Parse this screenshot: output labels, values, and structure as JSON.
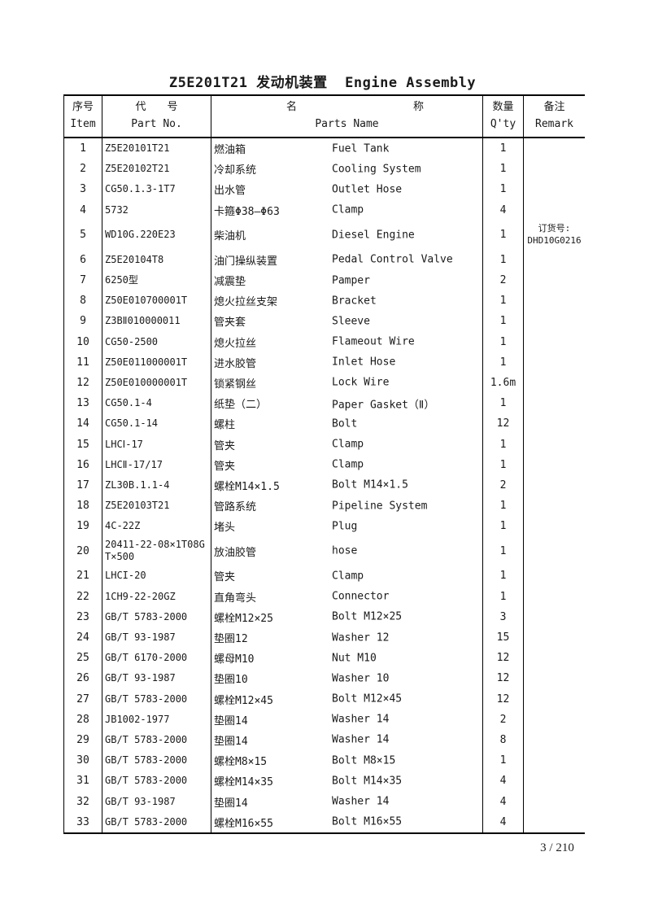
{
  "title": "Z5E201T21 发动机装置  Engine Assembly",
  "page_number": "3 / 210",
  "table": {
    "headers": {
      "item_cn": "序号",
      "item_en": "Item",
      "part_no_cn": "代　　号",
      "part_no_en": "Part No.",
      "name_cn_left": "名",
      "name_cn_right": "称",
      "name_en": "Parts Name",
      "qty_cn": "数量",
      "qty_en": "Q'ty",
      "remark_cn": "备注",
      "remark_en": "Remark"
    },
    "rows": [
      {
        "item": "1",
        "part_no": "Z5E20101T21",
        "name_cn": "燃油箱",
        "name_en": "Fuel Tank",
        "qty": "1",
        "remark": "",
        "tall": false
      },
      {
        "item": "2",
        "part_no": "Z5E20102T21",
        "name_cn": "冷却系统",
        "name_en": "Cooling System",
        "qty": "1",
        "remark": "",
        "tall": false
      },
      {
        "item": "3",
        "part_no": "CG50.1.3-1T7",
        "name_cn": "出水管",
        "name_en": "Outlet Hose",
        "qty": "1",
        "remark": "",
        "tall": false
      },
      {
        "item": "4",
        "part_no": "5732",
        "name_cn": "卡箍Φ38—Φ63",
        "name_en": "Clamp",
        "qty": "4",
        "remark": "",
        "tall": false
      },
      {
        "item": "5",
        "part_no": "WD10G.220E23",
        "name_cn": "柴油机",
        "name_en": "Diesel Engine",
        "qty": "1",
        "remark": "订货号:\nDHD10G0216",
        "tall": true
      },
      {
        "item": "6",
        "part_no": "Z5E20104T8",
        "name_cn": "油门操纵装置",
        "name_en": "Pedal Control Valve",
        "qty": "1",
        "remark": "",
        "tall": false
      },
      {
        "item": "7",
        "part_no": "6250型",
        "name_cn": "减震垫",
        "name_en": "Pamper",
        "qty": "2",
        "remark": "",
        "tall": false
      },
      {
        "item": "8",
        "part_no": "Z50E010700001T",
        "name_cn": "熄火拉丝支架",
        "name_en": "Bracket",
        "qty": "1",
        "remark": "",
        "tall": false
      },
      {
        "item": "9",
        "part_no": "Z3BⅡ010000011",
        "name_cn": "管夹套",
        "name_en": "Sleeve",
        "qty": "1",
        "remark": "",
        "tall": false
      },
      {
        "item": "10",
        "part_no": "CG50-2500",
        "name_cn": "熄火拉丝",
        "name_en": "Flameout Wire",
        "qty": "1",
        "remark": "",
        "tall": false
      },
      {
        "item": "11",
        "part_no": "Z50E011000001T",
        "name_cn": "进水胶管",
        "name_en": "Inlet Hose",
        "qty": "1",
        "remark": "",
        "tall": false
      },
      {
        "item": "12",
        "part_no": "Z50E010000001T",
        "name_cn": "锁紧钢丝",
        "name_en": "Lock Wire",
        "qty": "1.6m",
        "remark": "",
        "tall": false
      },
      {
        "item": "13",
        "part_no": "CG50.1-4",
        "name_cn": "纸垫（二）",
        "name_en": "Paper Gasket（Ⅱ）",
        "qty": "1",
        "remark": "",
        "tall": false
      },
      {
        "item": "14",
        "part_no": "CG50.1-14",
        "name_cn": "螺柱",
        "name_en": "Bolt",
        "qty": "12",
        "remark": "",
        "tall": false
      },
      {
        "item": "15",
        "part_no": "LHCⅠ-17",
        "name_cn": "管夹",
        "name_en": "Clamp",
        "qty": "1",
        "remark": "",
        "tall": false
      },
      {
        "item": "16",
        "part_no": "LHCⅡ-17/17",
        "name_cn": "管夹",
        "name_en": "Clamp",
        "qty": "1",
        "remark": "",
        "tall": false
      },
      {
        "item": "17",
        "part_no": "ZL30B.1.1-4",
        "name_cn": "螺栓M14×1.5",
        "name_en": "Bolt M14×1.5",
        "qty": "2",
        "remark": "",
        "tall": false
      },
      {
        "item": "18",
        "part_no": "Z5E20103T21",
        "name_cn": "管路系统",
        "name_en": "Pipeline System",
        "qty": "1",
        "remark": "",
        "tall": false
      },
      {
        "item": "19",
        "part_no": "4C-22Z",
        "name_cn": "堵头",
        "name_en": "Plug",
        "qty": "1",
        "remark": "",
        "tall": false
      },
      {
        "item": "20",
        "part_no": "20411-22-08×1T08GT×500",
        "name_cn": "放油胶管",
        "name_en": "hose",
        "qty": "1",
        "remark": "",
        "tall": true
      },
      {
        "item": "21",
        "part_no": "LHCI-20",
        "name_cn": "管夹",
        "name_en": "Clamp",
        "qty": "1",
        "remark": "",
        "tall": false
      },
      {
        "item": "22",
        "part_no": "1CH9-22-20GZ",
        "name_cn": "直角弯头",
        "name_en": "Connector",
        "qty": "1",
        "remark": "",
        "tall": false
      },
      {
        "item": "23",
        "part_no": "GB/T 5783-2000",
        "name_cn": "螺栓M12×25",
        "name_en": "Bolt M12×25",
        "qty": "3",
        "remark": "",
        "tall": false
      },
      {
        "item": "24",
        "part_no": "GB/T 93-1987",
        "name_cn": "垫圈12",
        "name_en": "Washer 12",
        "qty": "15",
        "remark": "",
        "tall": false
      },
      {
        "item": "25",
        "part_no": "GB/T 6170-2000",
        "name_cn": "螺母M10",
        "name_en": "Nut M10",
        "qty": "12",
        "remark": "",
        "tall": false
      },
      {
        "item": "26",
        "part_no": "GB/T 93-1987",
        "name_cn": "垫圈10",
        "name_en": "Washer 10",
        "qty": "12",
        "remark": "",
        "tall": false
      },
      {
        "item": "27",
        "part_no": "GB/T 5783-2000",
        "name_cn": "螺栓M12×45",
        "name_en": "Bolt M12×45",
        "qty": "12",
        "remark": "",
        "tall": false
      },
      {
        "item": "28",
        "part_no": "JB1002-1977",
        "name_cn": "垫圈14",
        "name_en": "Washer 14",
        "qty": "2",
        "remark": "",
        "tall": false
      },
      {
        "item": "29",
        "part_no": "GB/T 5783-2000",
        "name_cn": "垫圈14",
        "name_en": "Washer 14",
        "qty": "8",
        "remark": "",
        "tall": false
      },
      {
        "item": "30",
        "part_no": "GB/T 5783-2000",
        "name_cn": "螺栓M8×15",
        "name_en": "Bolt M8×15",
        "qty": "1",
        "remark": "",
        "tall": false
      },
      {
        "item": "31",
        "part_no": "GB/T 5783-2000",
        "name_cn": "螺栓M14×35",
        "name_en": "Bolt M14×35",
        "qty": "4",
        "remark": "",
        "tall": false
      },
      {
        "item": "32",
        "part_no": "GB/T 93-1987",
        "name_cn": "垫圈14",
        "name_en": "Washer 14",
        "qty": "4",
        "remark": "",
        "tall": false
      },
      {
        "item": "33",
        "part_no": "GB/T 5783-2000",
        "name_cn": "螺栓M16×55",
        "name_en": "Bolt M16×55",
        "qty": "4",
        "remark": "",
        "tall": false
      }
    ]
  }
}
